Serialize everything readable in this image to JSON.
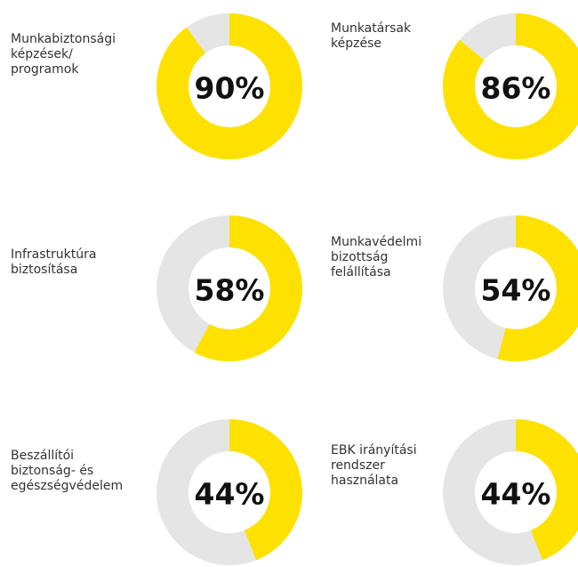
{
  "chart_data": [
    {
      "type": "donut",
      "label": [
        "Munkabiztonsági",
        "képzések/",
        "programok"
      ],
      "value": 90,
      "value_label": "90%",
      "color": "#ffe100"
    },
    {
      "type": "donut",
      "label": [
        "Munkatársak",
        "képzése"
      ],
      "value": 86,
      "value_label": "86%",
      "color": "#ffe100"
    },
    {
      "type": "donut",
      "label": [
        "Infrastruktúra",
        "biztosítása"
      ],
      "value": 58,
      "value_label": "58%",
      "color": "#ffe100"
    },
    {
      "type": "donut",
      "label": [
        "Munkavédelmi",
        "bizottság",
        "felállítása"
      ],
      "value": 54,
      "value_label": "54%",
      "color": "#ffe100"
    },
    {
      "type": "donut",
      "label": [
        "Beszállítói",
        "biztonság- és",
        "egészségvédelem"
      ],
      "value": 44,
      "value_label": "44%",
      "color": "#ffe100"
    },
    {
      "type": "donut",
      "label": [
        "EBK irányítási",
        "rendszer",
        "használata"
      ],
      "value": 44,
      "value_label": "44%",
      "color": "#ffe100"
    }
  ]
}
